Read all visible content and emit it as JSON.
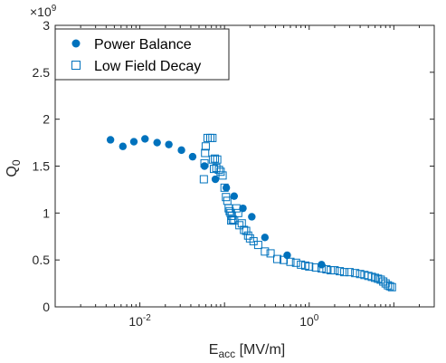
{
  "chart_data": {
    "type": "scatter",
    "xscale": "log",
    "xlim": [
      0.001,
      30
    ],
    "ylim": [
      0,
      3
    ],
    "y_multiplier_label": "×10^9",
    "xlabel": {
      "main": "E",
      "sub": "acc",
      "rest": " [MV/m]"
    },
    "ylabel": {
      "main": "Q",
      "sub": "0"
    },
    "xticks": [
      {
        "value": 0.01,
        "base": "10",
        "exp": "-2"
      },
      {
        "value": 1,
        "base": "10",
        "exp": "0"
      }
    ],
    "yticks": [
      "0",
      "0.5",
      "1",
      "1.5",
      "2",
      "2.5",
      "3"
    ],
    "legend_position": "top-left",
    "series": [
      {
        "name": "Power Balance",
        "marker": "filled-circle",
        "color": "#0072BD",
        "points": [
          [
            0.0045,
            1.78
          ],
          [
            0.0063,
            1.71
          ],
          [
            0.0085,
            1.76
          ],
          [
            0.0115,
            1.79
          ],
          [
            0.016,
            1.75
          ],
          [
            0.022,
            1.73
          ],
          [
            0.031,
            1.67
          ],
          [
            0.042,
            1.6
          ],
          [
            0.058,
            1.5
          ],
          [
            0.078,
            1.36
          ],
          [
            0.105,
            1.27
          ],
          [
            0.13,
            1.18
          ],
          [
            0.165,
            1.05
          ],
          [
            0.21,
            0.96
          ],
          [
            0.3,
            0.74
          ],
          [
            0.55,
            0.55
          ],
          [
            1.4,
            0.45
          ]
        ]
      },
      {
        "name": "Low Field Decay",
        "marker": "open-square",
        "color": "#0072BD",
        "points": [
          [
            0.057,
            1.36
          ],
          [
            0.058,
            1.53
          ],
          [
            0.059,
            1.64
          ],
          [
            0.06,
            1.71
          ],
          [
            0.063,
            1.8
          ],
          [
            0.068,
            1.8
          ],
          [
            0.072,
            1.8
          ],
          [
            0.073,
            1.57
          ],
          [
            0.077,
            1.58
          ],
          [
            0.075,
            1.47
          ],
          [
            0.08,
            1.48
          ],
          [
            0.082,
            1.57
          ],
          [
            0.086,
            1.46
          ],
          [
            0.09,
            1.44
          ],
          [
            0.095,
            1.4
          ],
          [
            0.1,
            1.27
          ],
          [
            0.104,
            1.17
          ],
          [
            0.108,
            1.13
          ],
          [
            0.112,
            1.05
          ],
          [
            0.115,
            1.02
          ],
          [
            0.118,
            1.0
          ],
          [
            0.12,
            0.92
          ],
          [
            0.122,
            0.97
          ],
          [
            0.125,
            0.93
          ],
          [
            0.13,
            0.92
          ],
          [
            0.138,
            1.05
          ],
          [
            0.145,
            1.0
          ],
          [
            0.15,
            0.87
          ],
          [
            0.16,
            0.89
          ],
          [
            0.17,
            0.82
          ],
          [
            0.18,
            0.81
          ],
          [
            0.19,
            0.76
          ],
          [
            0.2,
            0.73
          ],
          [
            0.22,
            0.7
          ],
          [
            0.25,
            0.66
          ],
          [
            0.3,
            0.59
          ],
          [
            0.35,
            0.57
          ],
          [
            0.42,
            0.51
          ],
          [
            0.5,
            0.5
          ],
          [
            0.6,
            0.48
          ],
          [
            0.7,
            0.47
          ],
          [
            0.8,
            0.45
          ],
          [
            0.9,
            0.44
          ],
          [
            1.0,
            0.43
          ],
          [
            1.2,
            0.42
          ],
          [
            1.4,
            0.41
          ],
          [
            1.6,
            0.4
          ],
          [
            1.8,
            0.39
          ],
          [
            2.0,
            0.39
          ],
          [
            2.3,
            0.38
          ],
          [
            2.6,
            0.37
          ],
          [
            3.0,
            0.37
          ],
          [
            3.5,
            0.36
          ],
          [
            4.0,
            0.35
          ],
          [
            4.5,
            0.34
          ],
          [
            5.0,
            0.33
          ],
          [
            5.5,
            0.32
          ],
          [
            6.0,
            0.31
          ],
          [
            6.5,
            0.3
          ],
          [
            7.0,
            0.29
          ],
          [
            7.5,
            0.27
          ],
          [
            8.0,
            0.25
          ],
          [
            8.5,
            0.23
          ],
          [
            9.0,
            0.22
          ],
          [
            9.5,
            0.21
          ]
        ]
      }
    ]
  }
}
